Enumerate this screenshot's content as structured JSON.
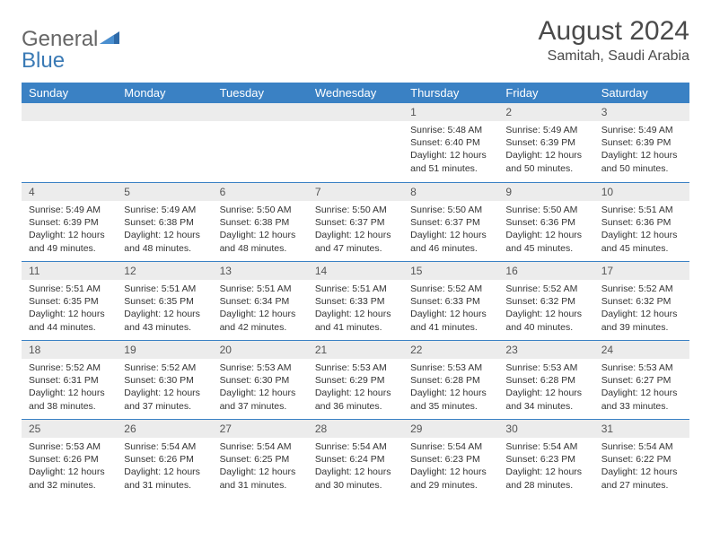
{
  "logo": {
    "part1": "General",
    "part2": "Blue"
  },
  "title": "August 2024",
  "location": "Samitah, Saudi Arabia",
  "colors": {
    "header_bg": "#3a81c4",
    "header_text": "#ffffff",
    "daynum_bg": "#ececec",
    "rule": "#3a81c4",
    "text": "#333333"
  },
  "weekdays": [
    "Sunday",
    "Monday",
    "Tuesday",
    "Wednesday",
    "Thursday",
    "Friday",
    "Saturday"
  ],
  "weeks": [
    [
      null,
      null,
      null,
      null,
      {
        "n": "1",
        "sr": "Sunrise: 5:48 AM",
        "ss": "Sunset: 6:40 PM",
        "dl": "Daylight: 12 hours and 51 minutes."
      },
      {
        "n": "2",
        "sr": "Sunrise: 5:49 AM",
        "ss": "Sunset: 6:39 PM",
        "dl": "Daylight: 12 hours and 50 minutes."
      },
      {
        "n": "3",
        "sr": "Sunrise: 5:49 AM",
        "ss": "Sunset: 6:39 PM",
        "dl": "Daylight: 12 hours and 50 minutes."
      }
    ],
    [
      {
        "n": "4",
        "sr": "Sunrise: 5:49 AM",
        "ss": "Sunset: 6:39 PM",
        "dl": "Daylight: 12 hours and 49 minutes."
      },
      {
        "n": "5",
        "sr": "Sunrise: 5:49 AM",
        "ss": "Sunset: 6:38 PM",
        "dl": "Daylight: 12 hours and 48 minutes."
      },
      {
        "n": "6",
        "sr": "Sunrise: 5:50 AM",
        "ss": "Sunset: 6:38 PM",
        "dl": "Daylight: 12 hours and 48 minutes."
      },
      {
        "n": "7",
        "sr": "Sunrise: 5:50 AM",
        "ss": "Sunset: 6:37 PM",
        "dl": "Daylight: 12 hours and 47 minutes."
      },
      {
        "n": "8",
        "sr": "Sunrise: 5:50 AM",
        "ss": "Sunset: 6:37 PM",
        "dl": "Daylight: 12 hours and 46 minutes."
      },
      {
        "n": "9",
        "sr": "Sunrise: 5:50 AM",
        "ss": "Sunset: 6:36 PM",
        "dl": "Daylight: 12 hours and 45 minutes."
      },
      {
        "n": "10",
        "sr": "Sunrise: 5:51 AM",
        "ss": "Sunset: 6:36 PM",
        "dl": "Daylight: 12 hours and 45 minutes."
      }
    ],
    [
      {
        "n": "11",
        "sr": "Sunrise: 5:51 AM",
        "ss": "Sunset: 6:35 PM",
        "dl": "Daylight: 12 hours and 44 minutes."
      },
      {
        "n": "12",
        "sr": "Sunrise: 5:51 AM",
        "ss": "Sunset: 6:35 PM",
        "dl": "Daylight: 12 hours and 43 minutes."
      },
      {
        "n": "13",
        "sr": "Sunrise: 5:51 AM",
        "ss": "Sunset: 6:34 PM",
        "dl": "Daylight: 12 hours and 42 minutes."
      },
      {
        "n": "14",
        "sr": "Sunrise: 5:51 AM",
        "ss": "Sunset: 6:33 PM",
        "dl": "Daylight: 12 hours and 41 minutes."
      },
      {
        "n": "15",
        "sr": "Sunrise: 5:52 AM",
        "ss": "Sunset: 6:33 PM",
        "dl": "Daylight: 12 hours and 41 minutes."
      },
      {
        "n": "16",
        "sr": "Sunrise: 5:52 AM",
        "ss": "Sunset: 6:32 PM",
        "dl": "Daylight: 12 hours and 40 minutes."
      },
      {
        "n": "17",
        "sr": "Sunrise: 5:52 AM",
        "ss": "Sunset: 6:32 PM",
        "dl": "Daylight: 12 hours and 39 minutes."
      }
    ],
    [
      {
        "n": "18",
        "sr": "Sunrise: 5:52 AM",
        "ss": "Sunset: 6:31 PM",
        "dl": "Daylight: 12 hours and 38 minutes."
      },
      {
        "n": "19",
        "sr": "Sunrise: 5:52 AM",
        "ss": "Sunset: 6:30 PM",
        "dl": "Daylight: 12 hours and 37 minutes."
      },
      {
        "n": "20",
        "sr": "Sunrise: 5:53 AM",
        "ss": "Sunset: 6:30 PM",
        "dl": "Daylight: 12 hours and 37 minutes."
      },
      {
        "n": "21",
        "sr": "Sunrise: 5:53 AM",
        "ss": "Sunset: 6:29 PM",
        "dl": "Daylight: 12 hours and 36 minutes."
      },
      {
        "n": "22",
        "sr": "Sunrise: 5:53 AM",
        "ss": "Sunset: 6:28 PM",
        "dl": "Daylight: 12 hours and 35 minutes."
      },
      {
        "n": "23",
        "sr": "Sunrise: 5:53 AM",
        "ss": "Sunset: 6:28 PM",
        "dl": "Daylight: 12 hours and 34 minutes."
      },
      {
        "n": "24",
        "sr": "Sunrise: 5:53 AM",
        "ss": "Sunset: 6:27 PM",
        "dl": "Daylight: 12 hours and 33 minutes."
      }
    ],
    [
      {
        "n": "25",
        "sr": "Sunrise: 5:53 AM",
        "ss": "Sunset: 6:26 PM",
        "dl": "Daylight: 12 hours and 32 minutes."
      },
      {
        "n": "26",
        "sr": "Sunrise: 5:54 AM",
        "ss": "Sunset: 6:26 PM",
        "dl": "Daylight: 12 hours and 31 minutes."
      },
      {
        "n": "27",
        "sr": "Sunrise: 5:54 AM",
        "ss": "Sunset: 6:25 PM",
        "dl": "Daylight: 12 hours and 31 minutes."
      },
      {
        "n": "28",
        "sr": "Sunrise: 5:54 AM",
        "ss": "Sunset: 6:24 PM",
        "dl": "Daylight: 12 hours and 30 minutes."
      },
      {
        "n": "29",
        "sr": "Sunrise: 5:54 AM",
        "ss": "Sunset: 6:23 PM",
        "dl": "Daylight: 12 hours and 29 minutes."
      },
      {
        "n": "30",
        "sr": "Sunrise: 5:54 AM",
        "ss": "Sunset: 6:23 PM",
        "dl": "Daylight: 12 hours and 28 minutes."
      },
      {
        "n": "31",
        "sr": "Sunrise: 5:54 AM",
        "ss": "Sunset: 6:22 PM",
        "dl": "Daylight: 12 hours and 27 minutes."
      }
    ]
  ]
}
